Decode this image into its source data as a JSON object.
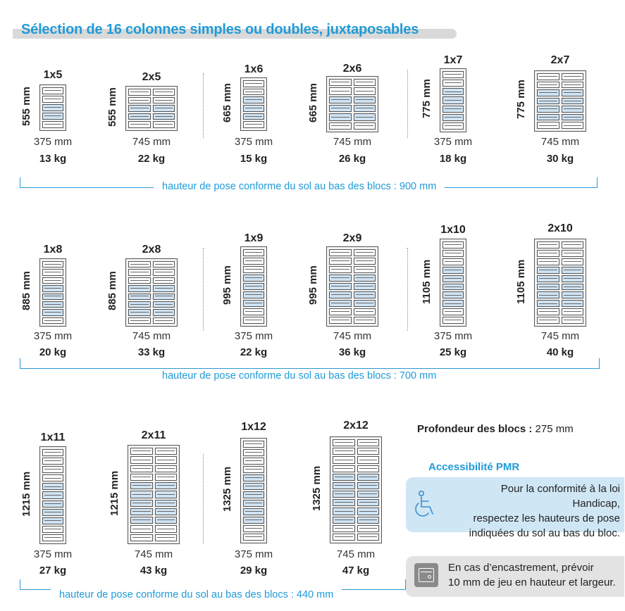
{
  "title": "Sélection de 16 colonnes simples ou doubles, juxtaposables",
  "rows": [
    {
      "bracket_text": "hauteur de pose conforme du sol au bas des blocs : 900 mm",
      "units": [
        {
          "name": "1x5",
          "height": "555 mm",
          "width": "375 mm",
          "weight": "13 kg"
        },
        {
          "name": "2x5",
          "height": "555 mm",
          "width": "745 mm",
          "weight": "22 kg"
        },
        {
          "name": "1x6",
          "height": "665 mm",
          "width": "375 mm",
          "weight": "15 kg"
        },
        {
          "name": "2x6",
          "height": "665 mm",
          "width": "745 mm",
          "weight": "26 kg"
        },
        {
          "name": "1x7",
          "height": "775 mm",
          "width": "375 mm",
          "weight": "18 kg"
        },
        {
          "name": "2x7",
          "height": "775 mm",
          "width": "745 mm",
          "weight": "30 kg"
        }
      ]
    },
    {
      "bracket_text": "hauteur de pose conforme du sol au bas des blocs : 700 mm",
      "units": [
        {
          "name": "1x8",
          "height": "885 mm",
          "width": "375 mm",
          "weight": "20 kg"
        },
        {
          "name": "2x8",
          "height": "885 mm",
          "width": "745 mm",
          "weight": "33 kg"
        },
        {
          "name": "1x9",
          "height": "995 mm",
          "width": "375 mm",
          "weight": "22 kg"
        },
        {
          "name": "2x9",
          "height": "995 mm",
          "width": "745 mm",
          "weight": "36 kg"
        },
        {
          "name": "1x10",
          "height": "1105 mm",
          "width": "375 mm",
          "weight": "25 kg"
        },
        {
          "name": "2x10",
          "height": "1105 mm",
          "width": "745 mm",
          "weight": "40 kg"
        }
      ]
    },
    {
      "bracket_text": "hauteur de pose conforme du sol au bas des blocs : 440 mm",
      "units": [
        {
          "name": "1x11",
          "height": "1215 mm",
          "width": "375 mm",
          "weight": "27 kg"
        },
        {
          "name": "2x11",
          "height": "1215 mm",
          "width": "745 mm",
          "weight": "43 kg"
        },
        {
          "name": "1x12",
          "height": "1325 mm",
          "width": "375 mm",
          "weight": "29 kg"
        },
        {
          "name": "2x12",
          "height": "1325 mm",
          "width": "745 mm",
          "weight": "47 kg"
        }
      ]
    }
  ],
  "depth": {
    "label": "Profondeur des blocs :",
    "value": "275 mm"
  },
  "pmr": {
    "title": "Accessibilité PMR",
    "icon": "wheelchair-icon",
    "lines": [
      "Pour la conformité à la loi Handicap,",
      "respectez les hauteurs de pose",
      "indiquées du sol au bas du bloc."
    ]
  },
  "embed": {
    "icon": "locker-icon",
    "lines": [
      "En cas d’encastrement, prévoir",
      "10 mm de jeu en hauteur et largeur."
    ]
  },
  "colors": {
    "accent": "#1f9bd8",
    "highlight": "#cfe3f3",
    "note_bg": "#cfe6f5",
    "note_grey": "#e3e3e3"
  }
}
